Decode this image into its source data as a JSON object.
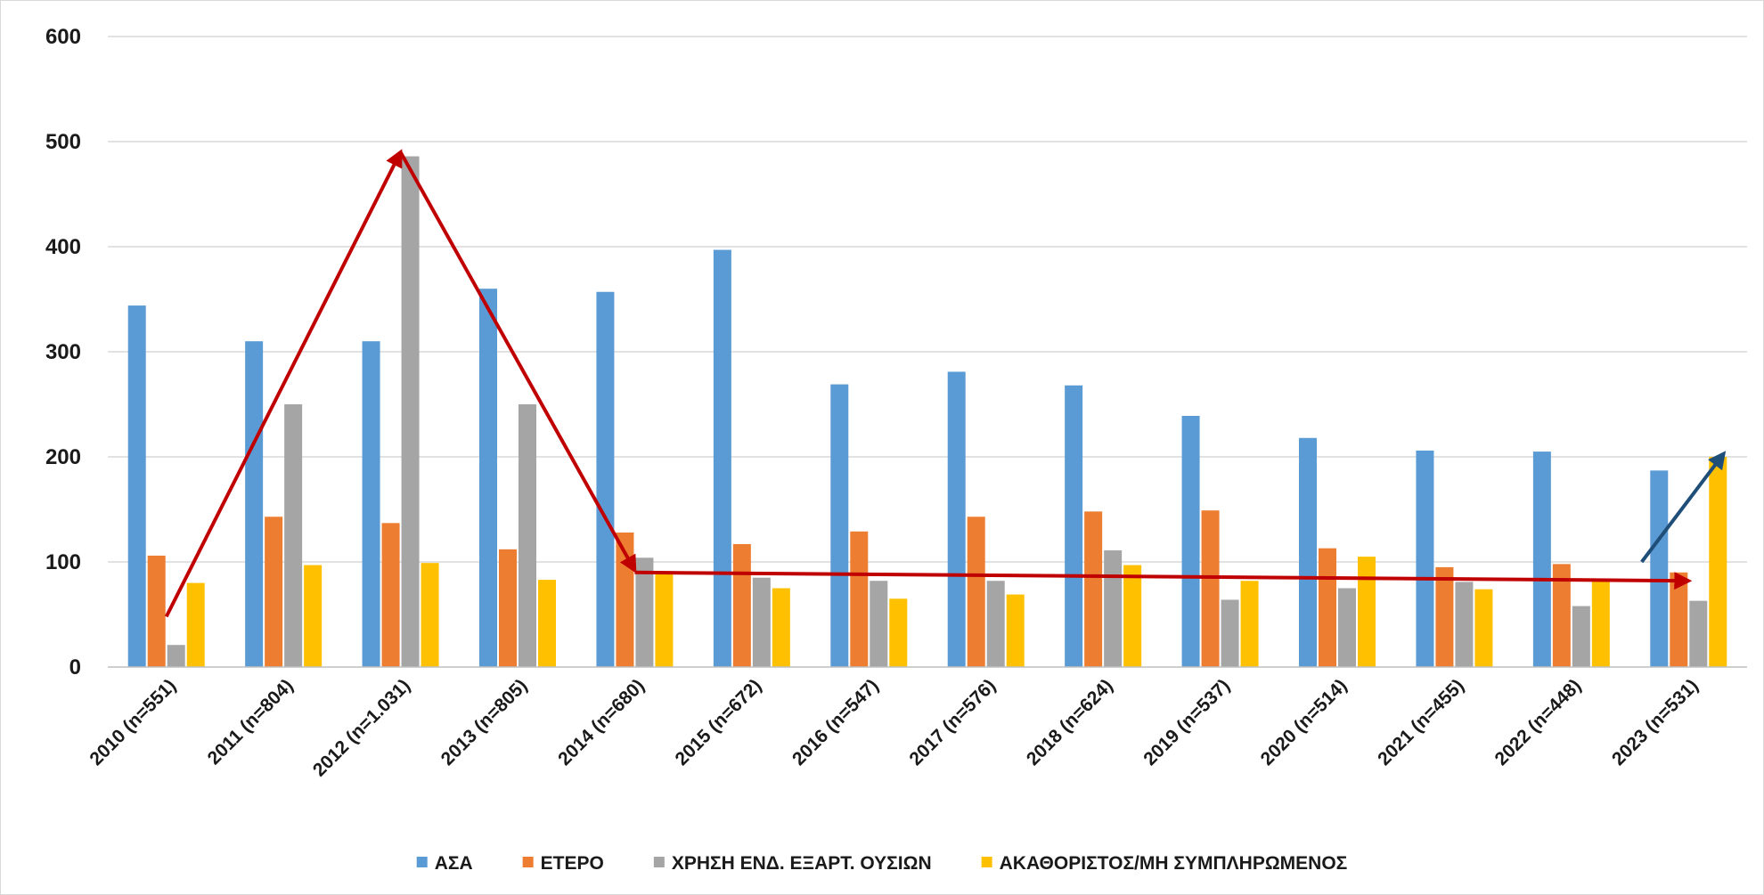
{
  "chart_data": {
    "type": "bar",
    "title": "",
    "xlabel": "",
    "ylabel": "",
    "ylim": [
      0,
      600
    ],
    "yticks": [
      0,
      100,
      200,
      300,
      400,
      500,
      600
    ],
    "grid": true,
    "legend_position": "bottom",
    "categories": [
      "2010 (n=551)",
      "2011 (n=804)",
      "2012 (n=1.031)",
      "2013 (n=805)",
      "2014 (n=680)",
      "2015 (n=672)",
      "2016 (n=547)",
      "2017 (n=576)",
      "2018 (n=624)",
      "2019 (n=537)",
      "2020 (n=514)",
      "2021 (n=455)",
      "2022 (n=448)",
      "2023 (n=531)"
    ],
    "series": [
      {
        "name": "ΑΣΑ",
        "color": "#5b9bd5",
        "values": [
          344,
          310,
          310,
          360,
          357,
          397,
          269,
          281,
          268,
          239,
          218,
          206,
          205,
          187
        ]
      },
      {
        "name": "ΕΤΕΡΟ",
        "color": "#ed7d31",
        "values": [
          106,
          143,
          137,
          112,
          128,
          117,
          129,
          143,
          148,
          149,
          113,
          95,
          98,
          90
        ]
      },
      {
        "name": "ΧΡΗΣΗ ΕΝΔ. ΕΞΑΡΤ. ΟΥΣΙΩΝ",
        "color": "#a5a5a5",
        "values": [
          21,
          250,
          486,
          250,
          104,
          85,
          82,
          82,
          111,
          64,
          75,
          81,
          58,
          63
        ]
      },
      {
        "name": "ΑΚΑΘΟΡΙΣΤΟΣ/ΜΗ ΣΥΜΠΛΗΡΩΜΕΝΟΣ",
        "color": "#ffc000",
        "values": [
          80,
          97,
          99,
          83,
          91,
          75,
          65,
          69,
          97,
          82,
          105,
          74,
          82,
          200
        ]
      }
    ],
    "annotations": [
      {
        "type": "trend-arrow",
        "color": "#c00000",
        "from": {
          "category": 0,
          "value": 48
        },
        "to": {
          "category": 2,
          "value": 490
        }
      },
      {
        "type": "trend-arrow",
        "color": "#c00000",
        "from": {
          "category": 2,
          "value": 490
        },
        "to": {
          "category": 4,
          "value": 92
        }
      },
      {
        "type": "trend-arrow",
        "color": "#c00000",
        "from": {
          "category": 4,
          "value": 90
        },
        "to": {
          "category": 13,
          "value": 82
        }
      },
      {
        "type": "trend-arrow",
        "color": "#1f4e79",
        "from": {
          "category": 12.6,
          "value": 100
        },
        "to": {
          "category": 13.3,
          "value": 203
        }
      }
    ]
  }
}
